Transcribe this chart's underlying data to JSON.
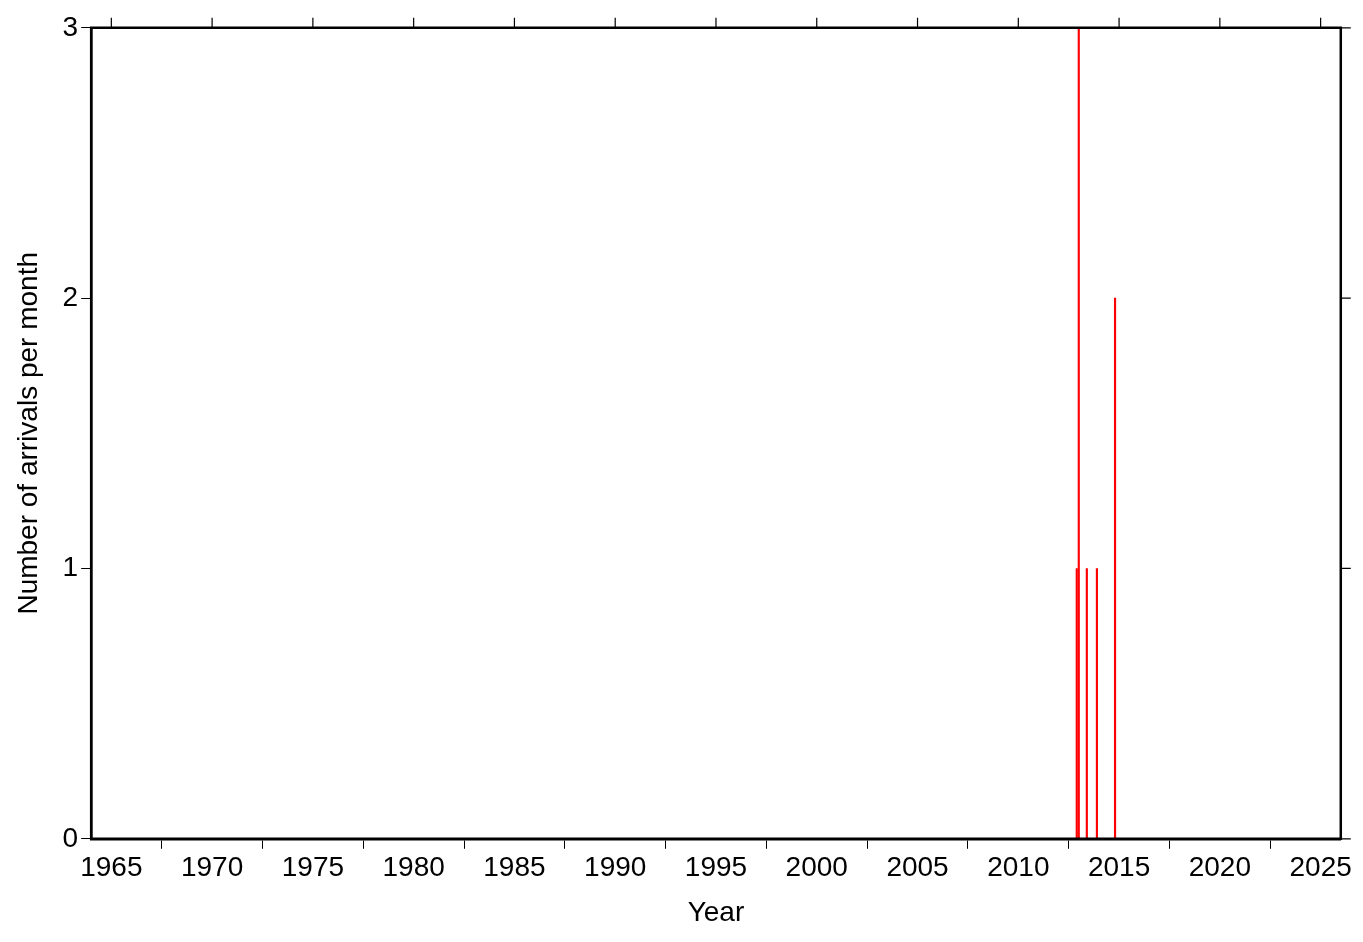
{
  "chart_data": {
    "type": "bar",
    "xlabel": "Year",
    "ylabel": "Number of arrivals per month",
    "x": [
      2012.9,
      2013.0,
      2013.4,
      2013.9,
      2014.8
    ],
    "values": [
      1,
      3,
      1,
      1,
      2
    ],
    "color": "#ff0000",
    "xlim": [
      1964,
      2026
    ],
    "xticks": [
      1965,
      1970,
      1975,
      1980,
      1985,
      1990,
      1995,
      2000,
      2005,
      2010,
      2015,
      2020,
      2025
    ],
    "ylim": [
      0,
      3
    ],
    "yticks": [
      0,
      1,
      2,
      3
    ],
    "grid": false,
    "legend": false
  }
}
